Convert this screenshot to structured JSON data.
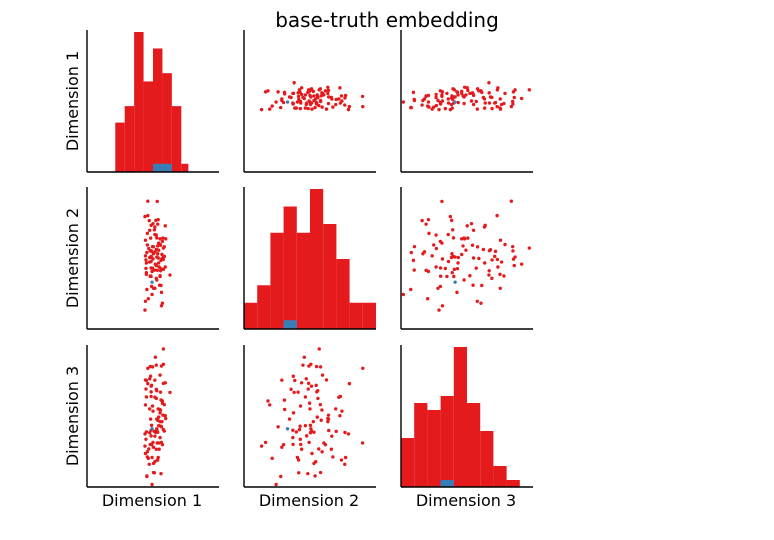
{
  "chart_data": {
    "type": "scatter",
    "title": "base-truth embedding",
    "dimension_labels": [
      "Dimension 1",
      "Dimension 2",
      "Dimension 3"
    ],
    "axis_ticks_shown": false,
    "grid": false,
    "legend": "none",
    "colors": {
      "main": "#e41a1c",
      "second": "#377eb8",
      "axes": "#000000"
    },
    "histograms": [
      {
        "dimension": "Dimension 1",
        "bin_edges": [
          -0.8,
          -0.6,
          -0.4,
          -0.2,
          0.0,
          0.2,
          0.4,
          0.6
        ],
        "main_counts": [
          6,
          8,
          17,
          11,
          15,
          12,
          8
        ],
        "second_counts": [
          0,
          0,
          0,
          0,
          1,
          1,
          0
        ],
        "extra_main_bin": {
          "left": 0.6,
          "right": 0.75,
          "count": 1
        }
      },
      {
        "dimension": "Dimension 2",
        "bin_edges": [
          -3.0,
          -2.4,
          -1.8,
          -1.2,
          -0.6,
          0.0,
          0.6,
          1.2,
          1.8,
          2.4,
          3.0
        ],
        "main_counts": [
          3,
          5,
          11,
          14,
          11,
          16,
          12,
          8,
          3,
          3
        ],
        "second_counts": [
          0,
          0,
          0,
          1,
          0,
          0,
          0,
          0,
          0,
          0
        ]
      },
      {
        "dimension": "Dimension 3",
        "bin_edges": [
          -3.0,
          -2.5,
          -2.0,
          -1.5,
          -1.0,
          -0.5,
          0.0,
          0.5,
          1.0,
          1.5,
          2.0
        ],
        "main_counts": [
          7,
          12,
          11,
          13,
          20,
          12,
          8,
          3,
          1
        ],
        "second_counts": [
          0,
          0,
          0,
          1,
          0,
          0,
          0,
          0,
          0
        ]
      }
    ],
    "points": {
      "main": [
        [
          0.11,
          1.62,
          -1.96
        ],
        [
          0.04,
          0.26,
          -2.11
        ],
        [
          -0.16,
          0.09,
          -1.82
        ],
        [
          -0.02,
          -0.57,
          -1.96
        ],
        [
          -0.12,
          0.55,
          -1.76
        ],
        [
          0.07,
          0.97,
          -1.67
        ],
        [
          0.03,
          -0.51,
          -2.5
        ],
        [
          0.17,
          -0.1,
          -2.53
        ],
        [
          -0.13,
          0.23,
          -2.61
        ],
        [
          -0.02,
          -1.54,
          -2.91
        ],
        [
          0.01,
          0.48,
          -2.49
        ],
        [
          0.06,
          1.59,
          -1.08
        ],
        [
          -0.01,
          0.48,
          1.23
        ],
        [
          0.04,
          -1.28,
          0.76
        ],
        [
          0.03,
          1.19,
          -1.04
        ],
        [
          -0.11,
          2.4,
          1.18
        ],
        [
          -0.07,
          1.17,
          -0.25
        ],
        [
          -0.05,
          -0.76,
          0.9
        ],
        [
          0.09,
          -0.52,
          -2.05
        ],
        [
          0.26,
          1.36,
          -0.49
        ],
        [
          0.18,
          -1.45,
          -0.88
        ],
        [
          0.22,
          -0.48,
          -0.98
        ],
        [
          -0.06,
          0.3,
          1.24
        ],
        [
          0.15,
          0.57,
          0.94
        ],
        [
          -0.14,
          -0.21,
          0.17
        ],
        [
          0.27,
          0.81,
          -0.59
        ],
        [
          -0.1,
          -1.72,
          -1.99
        ],
        [
          0.0,
          1.45,
          -0.33
        ],
        [
          0.08,
          0.35,
          0.39
        ],
        [
          0.2,
          0.7,
          -1.51
        ],
        [
          0.05,
          -0.26,
          1.57
        ],
        [
          0.22,
          0.04,
          1.32
        ],
        [
          -0.17,
          1.75,
          -1.13
        ],
        [
          0.15,
          -0.78,
          -1.26
        ],
        [
          0.04,
          0.99,
          -1.21
        ],
        [
          0.07,
          -0.32,
          1.29
        ],
        [
          -0.15,
          -0.08,
          0.45
        ],
        [
          -0.01,
          -0.43,
          -0.15
        ],
        [
          0.15,
          0.81,
          -0.7
        ],
        [
          0.24,
          0.47,
          -0.1
        ],
        [
          0.2,
          -1.91,
          0.03
        ],
        [
          -0.03,
          0.02,
          -0.83
        ],
        [
          0.01,
          0.18,
          -2.17
        ],
        [
          -0.12,
          1.04,
          -1.94
        ],
        [
          -0.09,
          0.4,
          -1.66
        ],
        [
          0.17,
          -1.16,
          0.06
        ],
        [
          0.12,
          0.63,
          -1.45
        ],
        [
          -0.17,
          -2.2,
          -1.56
        ],
        [
          -0.08,
          1.58,
          -2.2
        ],
        [
          0.01,
          -1.28,
          -1.6
        ],
        [
          0.18,
          -0.05,
          1.26
        ],
        [
          -0.04,
          0.07,
          0.55
        ],
        [
          0.12,
          -0.21,
          -0.84
        ],
        [
          0.16,
          0.54,
          -0.29
        ],
        [
          0.26,
          -0.38,
          0.67
        ],
        [
          0.18,
          -2.02,
          -1.43
        ],
        [
          -0.16,
          -1.83,
          -0.11
        ],
        [
          -0.04,
          -0.78,
          -1.0
        ],
        [
          0.24,
          0.07,
          -1.03
        ],
        [
          -0.15,
          -0.44,
          -1.32
        ],
        [
          0.21,
          0.84,
          -0.47
        ],
        [
          0.19,
          0.15,
          -0.7
        ],
        [
          0.16,
          -0.54,
          0.34
        ],
        [
          0.11,
          0.0,
          -0.25
        ],
        [
          0.22,
          0.42,
          1.86
        ],
        [
          -0.14,
          -0.69,
          0.75
        ],
        [
          -0.04,
          -0.42,
          -1.5
        ],
        [
          0.08,
          0.85,
          -1.01
        ],
        [
          0.22,
          -0.06,
          0.65
        ],
        [
          0.08,
          -0.93,
          -0.61
        ],
        [
          -0.03,
          -1.2,
          -1.51
        ],
        [
          0.14,
          -1.15,
          -0.27
        ],
        [
          -0.05,
          0.84,
          -0.61
        ],
        [
          0.12,
          0.33,
          -0.54
        ],
        [
          0.2,
          -0.02,
          -0.05
        ],
        [
          0.1,
          1.43,
          -2.05
        ],
        [
          -0.07,
          -0.17,
          0.81
        ],
        [
          0.07,
          -0.86,
          0.44
        ],
        [
          -0.03,
          0.28,
          0.58
        ],
        [
          0.1,
          0.51,
          -0.65
        ],
        [
          -0.04,
          -0.15,
          -1.2
        ],
        [
          0.08,
          0.04,
          -0.95
        ],
        [
          -0.13,
          -1.33,
          -2.63
        ],
        [
          0.15,
          -0.75,
          -0.39
        ],
        [
          0.13,
          -0.38,
          -1.67
        ],
        [
          0.1,
          0.18,
          -1.07
        ],
        [
          0.17,
          -0.45,
          -0.86
        ],
        [
          0.09,
          2.39,
          -1.45
        ],
        [
          -0.11,
          1.79,
          0.64
        ],
        [
          -0.06,
          -0.77,
          -1.5
        ],
        [
          -0.16,
          0.75,
          0.77
        ],
        [
          -0.04,
          0.31,
          0.35
        ],
        [
          -0.04,
          1.38,
          0.19
        ],
        [
          0.0,
          -0.04,
          -1.43
        ],
        [
          0.04,
          1.31,
          0.16
        ],
        [
          0.07,
          0.36,
          0.12
        ],
        [
          0.36,
          -0.72,
          0.33
        ],
        [
          -0.07,
          0.02,
          -1.09
        ],
        [
          -0.14,
          -0.62,
          -1.06
        ]
      ],
      "second": [
        [
          -0.02,
          -1.02,
          -0.95
        ]
      ]
    },
    "axis_ranges": [
      [
        -1.4,
        1.4
      ],
      [
        -3.0,
        3.0
      ],
      [
        -3.0,
        2.0
      ]
    ]
  }
}
